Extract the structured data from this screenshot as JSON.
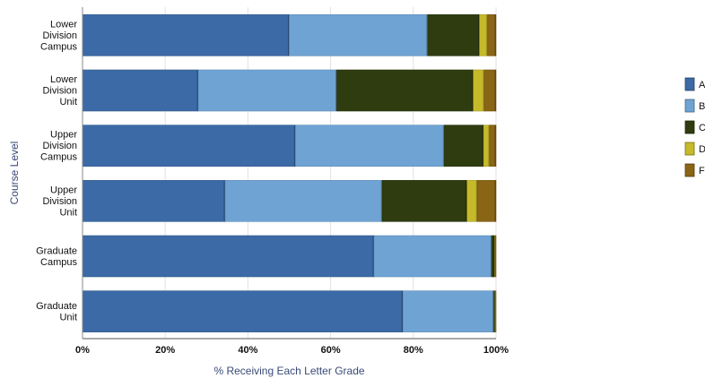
{
  "chart_data": {
    "type": "bar",
    "orientation": "horizontal",
    "stacked": true,
    "normalized_percent": true,
    "xlabel": "% Receiving Each Letter Grade",
    "ylabel": "Course Level",
    "xlim": [
      0,
      100
    ],
    "x_ticks": [
      "0%",
      "20%",
      "40%",
      "60%",
      "80%",
      "100%"
    ],
    "categories": [
      [
        "Lower",
        "Division",
        "Campus"
      ],
      [
        "Lower",
        "Division",
        "Unit"
      ],
      [
        "Upper",
        "Division",
        "Campus"
      ],
      [
        "Upper",
        "Division",
        "Unit"
      ],
      [
        "Graduate",
        "Campus"
      ],
      [
        "Graduate",
        "Unit"
      ]
    ],
    "series": [
      {
        "name": "A",
        "color": "#3b6aa6",
        "values": [
          50,
          28,
          51.5,
          34.5,
          70.5,
          77.5
        ]
      },
      {
        "name": "B",
        "color": "#6fa3d4",
        "values": [
          33.5,
          33.5,
          36,
          38,
          28.5,
          22
        ]
      },
      {
        "name": "C",
        "color": "#2f3c10",
        "values": [
          12.5,
          33,
          9.5,
          20.5,
          0.7,
          0.3
        ]
      },
      {
        "name": "D",
        "color": "#c6ba2a",
        "values": [
          2,
          2.7,
          1.5,
          2.5,
          0.1,
          0.1
        ]
      },
      {
        "name": "F",
        "color": "#8a6516",
        "values": [
          2,
          2.8,
          1.5,
          4.5,
          0.2,
          0.1
        ]
      }
    ],
    "legend_position": "right",
    "grid": "vertical"
  }
}
